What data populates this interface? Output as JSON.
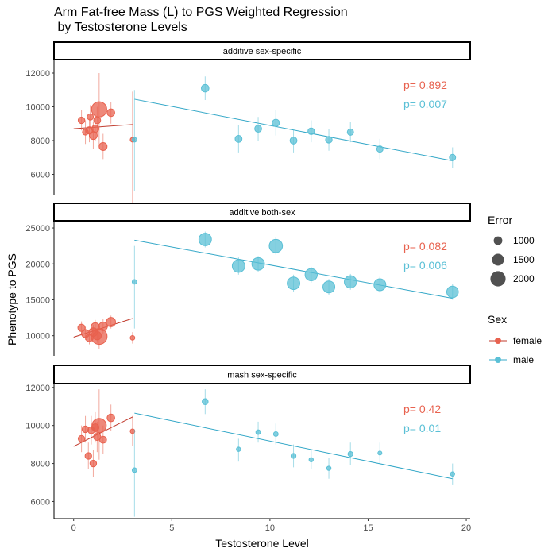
{
  "title": "Arm Fat-free Mass (L) to PGS Weighted Regression\n by Testosterone Levels",
  "colors": {
    "female": "#E8624F",
    "male": "#5BC0D6",
    "female_line": "#C0392B",
    "male_line": "#35A8C8"
  },
  "chart_data": {
    "type": "scatter",
    "xlabel": "Testosterone Level",
    "ylabel": "Phenotype to PGS",
    "xlim": [
      -1,
      20.2
    ],
    "x_ticks": [
      0,
      5,
      10,
      15,
      20
    ],
    "x_tick_labels": [
      "0",
      "5",
      "10",
      "15",
      "20"
    ],
    "legend": {
      "size_title": "Error",
      "size_items": [
        {
          "label": "1000",
          "value": 1000
        },
        {
          "label": "1500",
          "value": 1500
        },
        {
          "label": "2000",
          "value": 2000
        }
      ],
      "color_title": "Sex",
      "color_items": [
        {
          "label": "female",
          "key": "female"
        },
        {
          "label": "male",
          "key": "male"
        }
      ]
    },
    "panels": [
      {
        "strip": "additive sex-specific",
        "ylim": [
          4800,
          12800
        ],
        "y_ticks": [
          6000,
          8000,
          10000,
          12000
        ],
        "y_tick_labels": [
          "6000",
          "8000",
          "10000",
          "12000"
        ],
        "p_female": "p= 0.892",
        "p_male": "p= 0.007",
        "female_line": [
          [
            0,
            8700
          ],
          [
            3,
            8950
          ]
        ],
        "male_line": [
          [
            3.1,
            10450
          ],
          [
            19.3,
            6800
          ]
        ],
        "female_points": [
          {
            "x": 0.4,
            "y": 9200,
            "lo": 8600,
            "hi": 9800,
            "err": 700
          },
          {
            "x": 0.6,
            "y": 8500,
            "lo": 7800,
            "hi": 9200,
            "err": 600
          },
          {
            "x": 0.8,
            "y": 8600,
            "lo": 7900,
            "hi": 9300,
            "err": 800
          },
          {
            "x": 0.85,
            "y": 9400,
            "lo": 8700,
            "hi": 10100,
            "err": 650
          },
          {
            "x": 1.0,
            "y": 8300,
            "lo": 7500,
            "hi": 9100,
            "err": 900
          },
          {
            "x": 1.1,
            "y": 8700,
            "lo": 8000,
            "hi": 9400,
            "err": 800
          },
          {
            "x": 1.2,
            "y": 9200,
            "lo": 8400,
            "hi": 10000,
            "err": 750
          },
          {
            "x": 1.3,
            "y": 9850,
            "lo": 7700,
            "hi": 12000,
            "err": 2000
          },
          {
            "x": 1.5,
            "y": 7650,
            "lo": 6900,
            "hi": 8400,
            "err": 900
          },
          {
            "x": 1.9,
            "y": 9650,
            "lo": 9000,
            "hi": 10300,
            "err": 850
          },
          {
            "x": 3.0,
            "y": 8050,
            "lo": 4300,
            "hi": 10900,
            "err": 400
          }
        ],
        "male_points": [
          {
            "x": 3.1,
            "y": 8050,
            "lo": 5000,
            "hi": 11000,
            "err": 400
          },
          {
            "x": 6.7,
            "y": 11100,
            "lo": 10400,
            "hi": 11800,
            "err": 850
          },
          {
            "x": 8.4,
            "y": 8100,
            "lo": 7300,
            "hi": 8900,
            "err": 750
          },
          {
            "x": 9.4,
            "y": 8700,
            "lo": 8000,
            "hi": 9400,
            "err": 750
          },
          {
            "x": 10.3,
            "y": 9050,
            "lo": 8300,
            "hi": 9800,
            "err": 800
          },
          {
            "x": 11.2,
            "y": 8000,
            "lo": 7300,
            "hi": 8700,
            "err": 750
          },
          {
            "x": 12.1,
            "y": 8550,
            "lo": 7900,
            "hi": 9200,
            "err": 700
          },
          {
            "x": 13.0,
            "y": 8050,
            "lo": 7400,
            "hi": 8700,
            "err": 700
          },
          {
            "x": 14.1,
            "y": 8500,
            "lo": 7900,
            "hi": 9100,
            "err": 650
          },
          {
            "x": 15.6,
            "y": 7500,
            "lo": 6900,
            "hi": 8100,
            "err": 650
          },
          {
            "x": 19.3,
            "y": 7000,
            "lo": 6400,
            "hi": 7600,
            "err": 650
          }
        ]
      },
      {
        "strip": "additive both-sex",
        "ylim": [
          7200,
          26000
        ],
        "y_ticks": [
          10000,
          15000,
          20000,
          25000
        ],
        "y_tick_labels": [
          "10000",
          "15000",
          "20000",
          "25000"
        ],
        "p_female": "p= 0.082",
        "p_male": "p= 0.006",
        "female_line": [
          [
            0,
            9800
          ],
          [
            3,
            12400
          ]
        ],
        "male_line": [
          [
            3.1,
            23300
          ],
          [
            19.3,
            15200
          ]
        ],
        "female_points": [
          {
            "x": 0.4,
            "y": 11100,
            "lo": 10200,
            "hi": 12000,
            "err": 800
          },
          {
            "x": 0.6,
            "y": 10300,
            "lo": 9400,
            "hi": 11200,
            "err": 900
          },
          {
            "x": 0.8,
            "y": 9700,
            "lo": 8800,
            "hi": 10600,
            "err": 850
          },
          {
            "x": 1.0,
            "y": 10500,
            "lo": 9500,
            "hi": 11500,
            "err": 1000
          },
          {
            "x": 1.1,
            "y": 11200,
            "lo": 10200,
            "hi": 12200,
            "err": 1000
          },
          {
            "x": 1.2,
            "y": 10000,
            "lo": 9000,
            "hi": 11000,
            "err": 950
          },
          {
            "x": 1.3,
            "y": 9900,
            "lo": 8200,
            "hi": 11600,
            "err": 2100
          },
          {
            "x": 1.5,
            "y": 11300,
            "lo": 10300,
            "hi": 12300,
            "err": 1000
          },
          {
            "x": 1.9,
            "y": 11900,
            "lo": 11000,
            "hi": 12800,
            "err": 1100
          },
          {
            "x": 3.0,
            "y": 9700,
            "lo": 8900,
            "hi": 10500,
            "err": 400
          }
        ],
        "male_points": [
          {
            "x": 3.1,
            "y": 17500,
            "lo": 11000,
            "hi": 22500,
            "err": 400
          },
          {
            "x": 6.7,
            "y": 23400,
            "lo": 22300,
            "hi": 24500,
            "err": 1600
          },
          {
            "x": 8.4,
            "y": 19700,
            "lo": 18500,
            "hi": 20900,
            "err": 1600
          },
          {
            "x": 9.4,
            "y": 20000,
            "lo": 18900,
            "hi": 21100,
            "err": 1600
          },
          {
            "x": 10.3,
            "y": 22500,
            "lo": 21300,
            "hi": 23700,
            "err": 1700
          },
          {
            "x": 11.2,
            "y": 17300,
            "lo": 16100,
            "hi": 18500,
            "err": 1600
          },
          {
            "x": 12.1,
            "y": 18500,
            "lo": 17400,
            "hi": 19600,
            "err": 1550
          },
          {
            "x": 13.0,
            "y": 16800,
            "lo": 15700,
            "hi": 17900,
            "err": 1500
          },
          {
            "x": 14.1,
            "y": 17500,
            "lo": 16400,
            "hi": 18600,
            "err": 1550
          },
          {
            "x": 15.6,
            "y": 17100,
            "lo": 16000,
            "hi": 18200,
            "err": 1500
          },
          {
            "x": 19.3,
            "y": 16100,
            "lo": 15000,
            "hi": 17200,
            "err": 1450
          }
        ]
      },
      {
        "strip": "mash sex-specific",
        "ylim": [
          5100,
          12200
        ],
        "y_ticks": [
          6000,
          8000,
          10000,
          12000
        ],
        "y_tick_labels": [
          "6000",
          "8000",
          "10000",
          "12000"
        ],
        "p_female": "p= 0.42",
        "p_male": "p= 0.01",
        "female_line": [
          [
            0,
            8900
          ],
          [
            3,
            10450
          ]
        ],
        "male_line": [
          [
            3.1,
            10650
          ],
          [
            19.3,
            7200
          ]
        ],
        "female_points": [
          {
            "x": 0.4,
            "y": 9300,
            "lo": 8600,
            "hi": 10000,
            "err": 700
          },
          {
            "x": 0.6,
            "y": 9800,
            "lo": 9100,
            "hi": 10500,
            "err": 700
          },
          {
            "x": 0.75,
            "y": 8400,
            "lo": 7700,
            "hi": 9100,
            "err": 700
          },
          {
            "x": 0.9,
            "y": 9750,
            "lo": 9000,
            "hi": 10500,
            "err": 750
          },
          {
            "x": 1.0,
            "y": 8000,
            "lo": 7300,
            "hi": 8700,
            "err": 700
          },
          {
            "x": 1.1,
            "y": 9900,
            "lo": 9100,
            "hi": 10700,
            "err": 800
          },
          {
            "x": 1.2,
            "y": 9400,
            "lo": 8600,
            "hi": 10200,
            "err": 800
          },
          {
            "x": 1.3,
            "y": 10000,
            "lo": 8200,
            "hi": 11900,
            "err": 1850
          },
          {
            "x": 1.5,
            "y": 9250,
            "lo": 8500,
            "hi": 10000,
            "err": 750
          },
          {
            "x": 1.9,
            "y": 10400,
            "lo": 9700,
            "hi": 11100,
            "err": 850
          },
          {
            "x": 3.0,
            "y": 9700,
            "lo": 8900,
            "hi": 10500,
            "err": 400
          }
        ],
        "male_points": [
          {
            "x": 3.1,
            "y": 7650,
            "lo": 5200,
            "hi": 9800,
            "err": 400
          },
          {
            "x": 6.7,
            "y": 11250,
            "lo": 10600,
            "hi": 11900,
            "err": 600
          },
          {
            "x": 8.4,
            "y": 8750,
            "lo": 8100,
            "hi": 9300,
            "err": 350
          },
          {
            "x": 9.4,
            "y": 9650,
            "lo": 9100,
            "hi": 10200,
            "err": 400
          },
          {
            "x": 10.3,
            "y": 9550,
            "lo": 9000,
            "hi": 10100,
            "err": 400
          },
          {
            "x": 11.2,
            "y": 8400,
            "lo": 7800,
            "hi": 9000,
            "err": 450
          },
          {
            "x": 12.1,
            "y": 8200,
            "lo": 7700,
            "hi": 8700,
            "err": 350
          },
          {
            "x": 13.0,
            "y": 7750,
            "lo": 7200,
            "hi": 8300,
            "err": 350
          },
          {
            "x": 14.1,
            "y": 8500,
            "lo": 7900,
            "hi": 9100,
            "err": 450
          },
          {
            "x": 15.6,
            "y": 8550,
            "lo": 8000,
            "hi": 9100,
            "err": 300
          },
          {
            "x": 19.3,
            "y": 7450,
            "lo": 6900,
            "hi": 8000,
            "err": 350
          }
        ]
      }
    ]
  }
}
